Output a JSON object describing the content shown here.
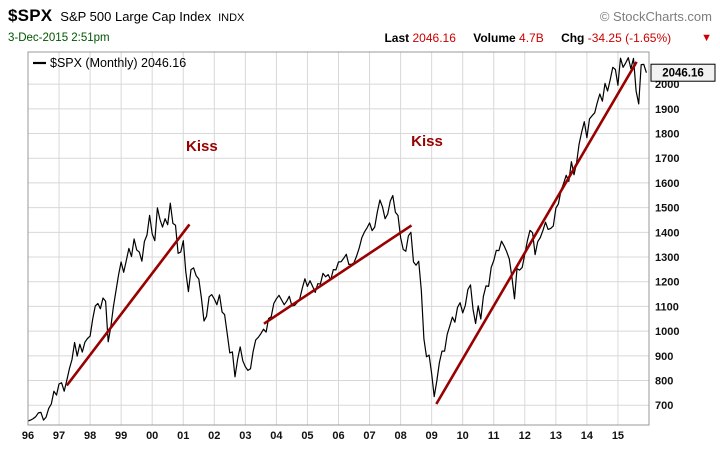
{
  "header": {
    "symbol": "$SPX",
    "name": "S&P 500 Large Cap Index",
    "exchange": "INDX",
    "source": "© StockCharts.com",
    "datetime": "3-Dec-2015 2:51pm",
    "quote": {
      "last_label": "Last",
      "last_value": "2046.16",
      "volume_label": "Volume",
      "volume_value": "4.7B",
      "chg_label": "Chg",
      "chg_value": "-34.25 (-1.65%)"
    },
    "direction_icon": "down-triangle"
  },
  "chart_data": {
    "type": "line",
    "title": "$SPX (Monthly)",
    "legend": "$SPX (Monthly) 2046.16",
    "last_price": 2046.16,
    "series_name": "S&P 500 monthly close",
    "x_start_year": 1996,
    "points_per_year": 12,
    "xlim": [
      1996,
      2016
    ],
    "ylim": [
      620,
      2130
    ],
    "grid": true,
    "y_axis_side": "right",
    "y_ticks": [
      700,
      800,
      900,
      1000,
      1100,
      1200,
      1300,
      1400,
      1500,
      1600,
      1700,
      1800,
      1900,
      2000
    ],
    "x_labels": [
      "96",
      "97",
      "98",
      "99",
      "00",
      "01",
      "02",
      "03",
      "04",
      "05",
      "06",
      "07",
      "08",
      "09",
      "10",
      "11",
      "12",
      "13",
      "14",
      "15"
    ],
    "values": [
      636,
      640,
      646,
      654,
      669,
      671,
      640,
      652,
      687,
      705,
      757,
      741,
      786,
      791,
      757,
      801,
      848,
      885,
      954,
      899,
      947,
      915,
      955,
      970,
      980,
      1049,
      1102,
      1112,
      1091,
      1134,
      1121,
      957,
      1017,
      1099,
      1164,
      1229,
      1280,
      1238,
      1286,
      1335,
      1302,
      1373,
      1329,
      1320,
      1283,
      1363,
      1389,
      1469,
      1394,
      1366,
      1499,
      1452,
      1421,
      1455,
      1431,
      1518,
      1436,
      1429,
      1315,
      1320,
      1366,
      1240,
      1160,
      1249,
      1256,
      1224,
      1211,
      1134,
      1041,
      1060,
      1139,
      1148,
      1130,
      1107,
      1147,
      1077,
      1067,
      990,
      912,
      916,
      815,
      886,
      936,
      880,
      856,
      841,
      848,
      917,
      964,
      975,
      990,
      1008,
      996,
      1051,
      1058,
      1112,
      1131,
      1145,
      1126,
      1107,
      1121,
      1141,
      1102,
      1104,
      1115,
      1130,
      1174,
      1212,
      1181,
      1204,
      1181,
      1157,
      1192,
      1191,
      1234,
      1220,
      1229,
      1207,
      1249,
      1248,
      1280,
      1281,
      1295,
      1311,
      1270,
      1270,
      1277,
      1304,
      1336,
      1378,
      1401,
      1418,
      1438,
      1407,
      1421,
      1482,
      1531,
      1503,
      1455,
      1474,
      1527,
      1549,
      1481,
      1468,
      1379,
      1331,
      1323,
      1386,
      1400,
      1280,
      1267,
      1283,
      1166,
      969,
      896,
      903,
      826,
      735,
      798,
      873,
      919,
      919,
      987,
      1021,
      1057,
      1036,
      1096,
      1115,
      1074,
      1104,
      1169,
      1187,
      1089,
      1031,
      1102,
      1049,
      1141,
      1183,
      1181,
      1258,
      1286,
      1327,
      1326,
      1364,
      1345,
      1321,
      1292,
      1219,
      1131,
      1253,
      1247,
      1258,
      1312,
      1366,
      1408,
      1398,
      1310,
      1362,
      1379,
      1407,
      1441,
      1412,
      1416,
      1426,
      1498,
      1515,
      1569,
      1598,
      1631,
      1606,
      1686,
      1633,
      1682,
      1757,
      1806,
      1848,
      1783,
      1859,
      1872,
      1884,
      1924,
      1960,
      1931,
      2003,
      1972,
      2018,
      2068,
      2059,
      1995,
      2105,
      2068,
      2086,
      2107,
      2063,
      2104,
      1972,
      1920,
      2079,
      2080,
      2046.16
    ],
    "trendlines": [
      {
        "x1": 1997.25,
        "y1": 780,
        "x2": 2001.2,
        "y2": 1432
      },
      {
        "x1": 2003.6,
        "y1": 1030,
        "x2": 2008.35,
        "y2": 1428
      },
      {
        "x1": 2009.15,
        "y1": 705,
        "x2": 2015.6,
        "y2": 2090
      }
    ],
    "annotations": [
      {
        "text": "Kiss",
        "x": 2001.6,
        "y": 1730
      },
      {
        "text": "Kiss",
        "x": 2008.85,
        "y": 1750
      }
    ],
    "colors": {
      "price": "#000000",
      "trend": "#990000",
      "grid": "#d8d8d8",
      "frame": "#999999",
      "value_red": "#cc0000",
      "label": "#111111",
      "datetime_green": "#005500"
    }
  }
}
